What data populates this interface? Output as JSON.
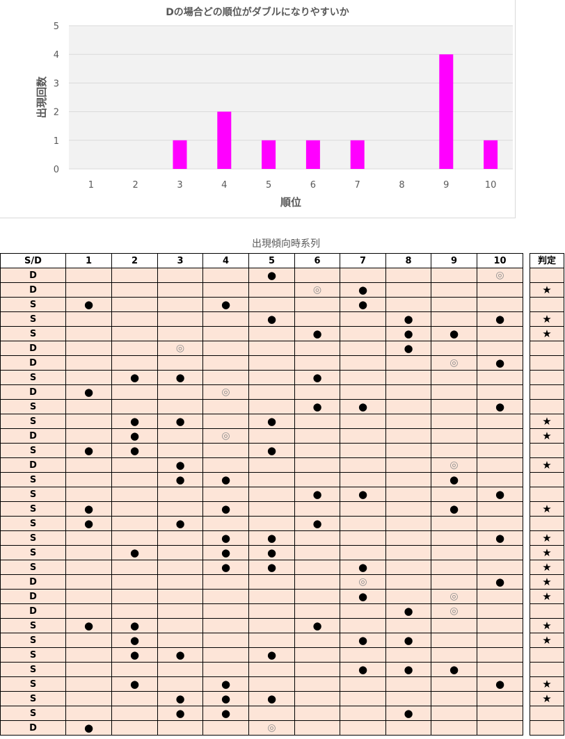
{
  "chart_data": {
    "type": "bar",
    "title": "Dの場合どの順位がダブルになりやすいか",
    "xlabel": "順位",
    "ylabel": "出現回数",
    "categories": [
      "1",
      "2",
      "3",
      "4",
      "5",
      "6",
      "7",
      "8",
      "9",
      "10"
    ],
    "values": [
      0,
      0,
      1,
      2,
      1,
      1,
      1,
      0,
      4,
      1
    ],
    "ylim": [
      0,
      5
    ],
    "yticks": [
      0,
      1,
      2,
      3,
      4,
      5
    ],
    "grid": true,
    "legend": "none",
    "bar_color": "#ff00ff"
  },
  "table": {
    "caption": "出現傾向時系列",
    "sd_header": "S/D",
    "col_headers": [
      "1",
      "2",
      "3",
      "4",
      "5",
      "6",
      "7",
      "8",
      "9",
      "10"
    ],
    "judge_header": "判定",
    "symbols": {
      "dot": "●",
      "double": "◎",
      "star": "★"
    },
    "rows": [
      {
        "sd": "D",
        "marks": [
          "",
          "",
          "",
          "",
          "dot",
          "",
          "",
          "",
          "",
          "double"
        ],
        "judge": ""
      },
      {
        "sd": "D",
        "marks": [
          "",
          "",
          "",
          "",
          "",
          "double",
          "dot",
          "",
          "",
          ""
        ],
        "judge": "star"
      },
      {
        "sd": "S",
        "marks": [
          "dot",
          "",
          "",
          "dot",
          "",
          "",
          "dot",
          "",
          "",
          ""
        ],
        "judge": ""
      },
      {
        "sd": "S",
        "marks": [
          "",
          "",
          "",
          "",
          "dot",
          "",
          "",
          "dot",
          "",
          "dot"
        ],
        "judge": "star"
      },
      {
        "sd": "S",
        "marks": [
          "",
          "",
          "",
          "",
          "",
          "dot",
          "",
          "dot",
          "dot",
          ""
        ],
        "judge": "star"
      },
      {
        "sd": "D",
        "marks": [
          "",
          "",
          "double",
          "",
          "",
          "",
          "",
          "dot",
          "",
          ""
        ],
        "judge": ""
      },
      {
        "sd": "D",
        "marks": [
          "",
          "",
          "",
          "",
          "",
          "",
          "",
          "",
          "double",
          "dot"
        ],
        "judge": ""
      },
      {
        "sd": "S",
        "marks": [
          "",
          "dot",
          "dot",
          "",
          "",
          "dot",
          "",
          "",
          "",
          ""
        ],
        "judge": ""
      },
      {
        "sd": "D",
        "marks": [
          "dot",
          "",
          "",
          "double",
          "",
          "",
          "",
          "",
          "",
          ""
        ],
        "judge": ""
      },
      {
        "sd": "S",
        "marks": [
          "",
          "",
          "",
          "",
          "",
          "dot",
          "dot",
          "",
          "",
          "dot"
        ],
        "judge": ""
      },
      {
        "sd": "S",
        "marks": [
          "",
          "dot",
          "dot",
          "",
          "dot",
          "",
          "",
          "",
          "",
          ""
        ],
        "judge": "star"
      },
      {
        "sd": "D",
        "marks": [
          "",
          "dot",
          "",
          "double",
          "",
          "",
          "",
          "",
          "",
          ""
        ],
        "judge": "star"
      },
      {
        "sd": "S",
        "marks": [
          "dot",
          "dot",
          "",
          "",
          "dot",
          "",
          "",
          "",
          "",
          ""
        ],
        "judge": ""
      },
      {
        "sd": "D",
        "marks": [
          "",
          "",
          "dot",
          "",
          "",
          "",
          "",
          "",
          "double",
          ""
        ],
        "judge": "star"
      },
      {
        "sd": "S",
        "marks": [
          "",
          "",
          "dot",
          "dot",
          "",
          "",
          "",
          "",
          "dot",
          ""
        ],
        "judge": ""
      },
      {
        "sd": "S",
        "marks": [
          "",
          "",
          "",
          "",
          "",
          "dot",
          "dot",
          "",
          "",
          "dot"
        ],
        "judge": ""
      },
      {
        "sd": "S",
        "marks": [
          "dot",
          "",
          "",
          "dot",
          "",
          "",
          "",
          "",
          "dot",
          ""
        ],
        "judge": "star"
      },
      {
        "sd": "S",
        "marks": [
          "dot",
          "",
          "dot",
          "",
          "",
          "dot",
          "",
          "",
          "",
          ""
        ],
        "judge": ""
      },
      {
        "sd": "S",
        "marks": [
          "",
          "",
          "",
          "dot",
          "dot",
          "",
          "",
          "",
          "",
          "dot"
        ],
        "judge": "star"
      },
      {
        "sd": "S",
        "marks": [
          "",
          "dot",
          "",
          "dot",
          "dot",
          "",
          "",
          "",
          "",
          ""
        ],
        "judge": "star"
      },
      {
        "sd": "S",
        "marks": [
          "",
          "",
          "",
          "dot",
          "dot",
          "",
          "dot",
          "",
          "",
          ""
        ],
        "judge": "star"
      },
      {
        "sd": "D",
        "marks": [
          "",
          "",
          "",
          "",
          "",
          "",
          "double",
          "",
          "",
          "dot"
        ],
        "judge": "star"
      },
      {
        "sd": "D",
        "marks": [
          "",
          "",
          "",
          "",
          "",
          "",
          "dot",
          "",
          "double",
          ""
        ],
        "judge": "star"
      },
      {
        "sd": "D",
        "marks": [
          "",
          "",
          "",
          "",
          "",
          "",
          "",
          "dot",
          "double",
          ""
        ],
        "judge": ""
      },
      {
        "sd": "S",
        "marks": [
          "dot",
          "dot",
          "",
          "",
          "",
          "dot",
          "",
          "",
          "",
          ""
        ],
        "judge": "star"
      },
      {
        "sd": "S",
        "marks": [
          "",
          "dot",
          "",
          "",
          "",
          "",
          "dot",
          "dot",
          "",
          ""
        ],
        "judge": "star"
      },
      {
        "sd": "S",
        "marks": [
          "",
          "dot",
          "dot",
          "",
          "dot",
          "",
          "",
          "",
          "",
          ""
        ],
        "judge": ""
      },
      {
        "sd": "S",
        "marks": [
          "",
          "",
          "",
          "",
          "",
          "",
          "dot",
          "dot",
          "dot",
          ""
        ],
        "judge": ""
      },
      {
        "sd": "S",
        "marks": [
          "",
          "dot",
          "",
          "dot",
          "",
          "",
          "",
          "",
          "",
          "dot"
        ],
        "judge": "star"
      },
      {
        "sd": "S",
        "marks": [
          "",
          "",
          "dot",
          "dot",
          "dot",
          "",
          "",
          "",
          "",
          ""
        ],
        "judge": "star"
      },
      {
        "sd": "S",
        "marks": [
          "",
          "",
          "dot",
          "dot",
          "",
          "",
          "",
          "dot",
          "",
          ""
        ],
        "judge": ""
      },
      {
        "sd": "D",
        "marks": [
          "dot",
          "",
          "",
          "",
          "double",
          "",
          "",
          "",
          "",
          ""
        ],
        "judge": ""
      }
    ]
  }
}
